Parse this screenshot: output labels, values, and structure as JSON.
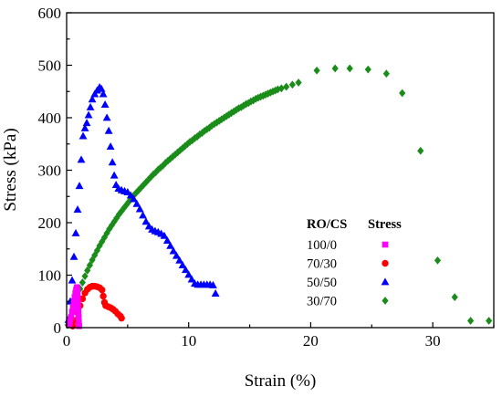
{
  "chart_data": {
    "type": "scatter",
    "title": "",
    "xlabel": "Strain (%)",
    "ylabel": "Stress (kPa)",
    "xlim": [
      0,
      35
    ],
    "ylim": [
      0,
      600
    ],
    "xticks": [
      0,
      10,
      20,
      30
    ],
    "yticks": [
      0,
      100,
      200,
      300,
      400,
      500,
      600
    ],
    "grid": false,
    "legend": {
      "placement": "lower-right",
      "header_left": "RO/CS",
      "header_right": "Stress"
    },
    "series": [
      {
        "name": "100/0",
        "color": "#ff00ff",
        "marker": "square",
        "points": [
          [
            0.2,
            5
          ],
          [
            0.28,
            12
          ],
          [
            0.36,
            20
          ],
          [
            0.44,
            30
          ],
          [
            0.52,
            40
          ],
          [
            0.6,
            50
          ],
          [
            0.66,
            58
          ],
          [
            0.72,
            66
          ],
          [
            0.78,
            72
          ],
          [
            0.84,
            77
          ],
          [
            0.88,
            70
          ],
          [
            0.9,
            60
          ],
          [
            0.92,
            50
          ],
          [
            0.94,
            40
          ],
          [
            0.96,
            30
          ],
          [
            0.98,
            20
          ],
          [
            1.0,
            10
          ],
          [
            1.02,
            3
          ]
        ]
      },
      {
        "name": "70/30",
        "color": "#ff0000",
        "marker": "circle",
        "points": [
          [
            0.5,
            3
          ],
          [
            0.7,
            14
          ],
          [
            0.9,
            28
          ],
          [
            1.1,
            42
          ],
          [
            1.3,
            55
          ],
          [
            1.5,
            66
          ],
          [
            1.7,
            73
          ],
          [
            1.9,
            77
          ],
          [
            2.1,
            79
          ],
          [
            2.3,
            79
          ],
          [
            2.5,
            78
          ],
          [
            2.7,
            76
          ],
          [
            2.9,
            72
          ],
          [
            3.0,
            60
          ],
          [
            3.1,
            48
          ],
          [
            3.2,
            42
          ],
          [
            3.4,
            40
          ],
          [
            3.6,
            38
          ],
          [
            3.8,
            35
          ],
          [
            4.0,
            31
          ],
          [
            4.2,
            26
          ],
          [
            4.4,
            22
          ],
          [
            4.5,
            18
          ]
        ]
      },
      {
        "name": "50/50",
        "color": "#0000ff",
        "marker": "triangle",
        "points": [
          [
            0.15,
            15
          ],
          [
            0.3,
            50
          ],
          [
            0.45,
            90
          ],
          [
            0.6,
            135
          ],
          [
            0.75,
            180
          ],
          [
            0.9,
            225
          ],
          [
            1.05,
            270
          ],
          [
            1.2,
            320
          ],
          [
            1.35,
            365
          ],
          [
            1.5,
            380
          ],
          [
            1.65,
            390
          ],
          [
            1.8,
            405
          ],
          [
            1.95,
            420
          ],
          [
            2.1,
            435
          ],
          [
            2.3,
            445
          ],
          [
            2.5,
            452
          ],
          [
            2.7,
            458
          ],
          [
            2.85,
            455
          ],
          [
            3.0,
            445
          ],
          [
            3.15,
            425
          ],
          [
            3.3,
            400
          ],
          [
            3.45,
            375
          ],
          [
            3.6,
            345
          ],
          [
            3.75,
            315
          ],
          [
            3.9,
            290
          ],
          [
            4.05,
            272
          ],
          [
            4.25,
            265
          ],
          [
            4.5,
            262
          ],
          [
            4.75,
            260
          ],
          [
            5.0,
            258
          ],
          [
            5.25,
            252
          ],
          [
            5.5,
            245
          ],
          [
            5.75,
            236
          ],
          [
            6.0,
            226
          ],
          [
            6.25,
            214
          ],
          [
            6.5,
            202
          ],
          [
            6.75,
            193
          ],
          [
            7.0,
            187
          ],
          [
            7.25,
            184
          ],
          [
            7.5,
            182
          ],
          [
            7.75,
            179
          ],
          [
            8.0,
            175
          ],
          [
            8.25,
            166
          ],
          [
            8.5,
            156
          ],
          [
            8.75,
            146
          ],
          [
            9.0,
            137
          ],
          [
            9.25,
            128
          ],
          [
            9.5,
            119
          ],
          [
            9.75,
            110
          ],
          [
            10.0,
            101
          ],
          [
            10.25,
            92
          ],
          [
            10.5,
            84
          ],
          [
            10.75,
            82
          ],
          [
            11.0,
            82
          ],
          [
            11.25,
            82
          ],
          [
            11.5,
            82
          ],
          [
            11.75,
            82
          ],
          [
            12.0,
            81
          ],
          [
            12.2,
            65
          ]
        ]
      },
      {
        "name": "30/70",
        "color": "#1a8c1a",
        "marker": "diamond",
        "points": [
          [
            0.1,
            5
          ],
          [
            0.3,
            20
          ],
          [
            0.5,
            35
          ],
          [
            0.7,
            50
          ],
          [
            0.9,
            62
          ],
          [
            1.1,
            74
          ],
          [
            1.3,
            86
          ],
          [
            1.5,
            98
          ],
          [
            1.7,
            109
          ],
          [
            1.9,
            119
          ],
          [
            2.1,
            129
          ],
          [
            2.3,
            138
          ],
          [
            2.5,
            147
          ],
          [
            2.7,
            156
          ],
          [
            2.9,
            164
          ],
          [
            3.1,
            172
          ],
          [
            3.3,
            180
          ],
          [
            3.5,
            188
          ],
          [
            3.7,
            195
          ],
          [
            3.9,
            202
          ],
          [
            4.1,
            209
          ],
          [
            4.3,
            216
          ],
          [
            4.5,
            222
          ],
          [
            4.7,
            228
          ],
          [
            4.9,
            234
          ],
          [
            5.1,
            240
          ],
          [
            5.3,
            246
          ],
          [
            5.5,
            252
          ],
          [
            5.7,
            257
          ],
          [
            5.9,
            262
          ],
          [
            6.1,
            267
          ],
          [
            6.3,
            272
          ],
          [
            6.5,
            277
          ],
          [
            6.7,
            282
          ],
          [
            6.9,
            287
          ],
          [
            7.1,
            292
          ],
          [
            7.3,
            296
          ],
          [
            7.5,
            301
          ],
          [
            7.7,
            305
          ],
          [
            7.9,
            309
          ],
          [
            8.1,
            314
          ],
          [
            8.3,
            318
          ],
          [
            8.5,
            322
          ],
          [
            8.7,
            326
          ],
          [
            8.9,
            330
          ],
          [
            9.1,
            334
          ],
          [
            9.3,
            338
          ],
          [
            9.5,
            342
          ],
          [
            9.7,
            346
          ],
          [
            9.9,
            350
          ],
          [
            10.1,
            354
          ],
          [
            10.3,
            357
          ],
          [
            10.5,
            361
          ],
          [
            10.7,
            364
          ],
          [
            10.9,
            368
          ],
          [
            11.1,
            371
          ],
          [
            11.3,
            375
          ],
          [
            11.5,
            378
          ],
          [
            11.7,
            381
          ],
          [
            11.9,
            385
          ],
          [
            12.1,
            388
          ],
          [
            12.3,
            391
          ],
          [
            12.5,
            394
          ],
          [
            12.7,
            397
          ],
          [
            12.9,
            400
          ],
          [
            13.1,
            403
          ],
          [
            13.3,
            406
          ],
          [
            13.5,
            409
          ],
          [
            13.7,
            412
          ],
          [
            13.9,
            415
          ],
          [
            14.1,
            418
          ],
          [
            14.3,
            420
          ],
          [
            14.5,
            423
          ],
          [
            14.7,
            426
          ],
          [
            14.9,
            428
          ],
          [
            15.1,
            431
          ],
          [
            15.3,
            433
          ],
          [
            15.5,
            436
          ],
          [
            15.7,
            438
          ],
          [
            15.9,
            440
          ],
          [
            16.1,
            442
          ],
          [
            16.3,
            444
          ],
          [
            16.5,
            446
          ],
          [
            16.7,
            448
          ],
          [
            16.9,
            450
          ],
          [
            17.1,
            452
          ],
          [
            17.3,
            454
          ],
          [
            17.6,
            456
          ],
          [
            18.0,
            459
          ],
          [
            18.5,
            463
          ],
          [
            19.0,
            467
          ],
          [
            20.5,
            490
          ],
          [
            22.0,
            494
          ],
          [
            23.2,
            494
          ],
          [
            24.7,
            492
          ],
          [
            26.2,
            484
          ],
          [
            27.5,
            447
          ],
          [
            29.0,
            337
          ],
          [
            30.4,
            128
          ],
          [
            31.8,
            58
          ],
          [
            33.1,
            13
          ],
          [
            34.6,
            13
          ]
        ]
      }
    ]
  }
}
